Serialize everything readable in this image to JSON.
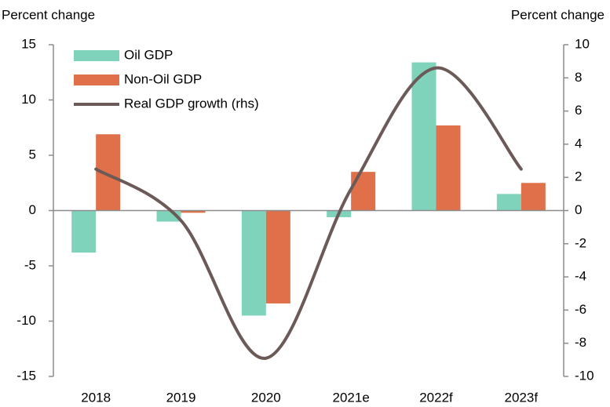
{
  "chart_data": {
    "type": "bar",
    "y_label": "Percent change",
    "y2_label": "Percent change",
    "categories": [
      "2018",
      "2019",
      "2020",
      "2021e",
      "2022f",
      "2023f"
    ],
    "series": [
      {
        "name": "Oil GDP",
        "color": "#7fd3bb",
        "values": [
          -3.8,
          -1.0,
          -9.5,
          -0.6,
          13.4,
          1.5
        ]
      },
      {
        "name": "Non-Oil GDP",
        "color": "#e0704a",
        "values": [
          6.9,
          -0.2,
          -8.4,
          3.5,
          7.7,
          2.5
        ]
      },
      {
        "name": "Real GDP growth (rhs)",
        "color": "#6b5a57",
        "type": "line",
        "axis": "y2",
        "values": [
          2.5,
          -0.6,
          -8.9,
          1.3,
          8.6,
          2.5
        ]
      }
    ],
    "ylim": [
      -15,
      15
    ],
    "yticks": [
      -15,
      -10,
      -5,
      0,
      5,
      10,
      15
    ],
    "y2lim": [
      -10,
      10
    ],
    "y2ticks": [
      -10,
      -8,
      -6,
      -4,
      -2,
      0,
      2,
      4,
      6,
      8,
      10
    ],
    "grid": false,
    "legend": "upper left"
  }
}
